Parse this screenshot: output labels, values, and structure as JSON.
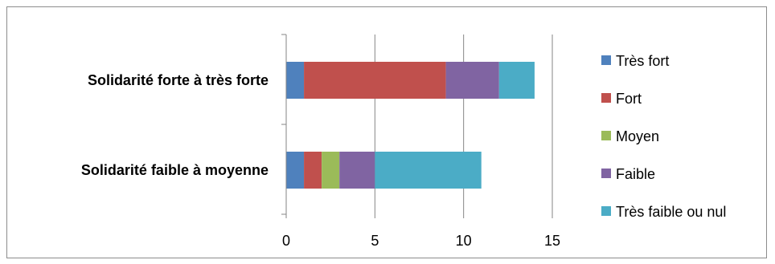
{
  "chart_data": {
    "type": "bar",
    "orientation": "horizontal",
    "stacked": true,
    "categories": [
      "Solidarité forte à très forte",
      "Solidarité faible à moyenne"
    ],
    "series": [
      {
        "name": "Très fort",
        "color": "#4f81bd",
        "values": [
          1,
          1
        ]
      },
      {
        "name": "Fort",
        "color": "#c0504d",
        "values": [
          8,
          1
        ]
      },
      {
        "name": "Moyen",
        "color": "#9bbb59",
        "values": [
          0,
          1
        ]
      },
      {
        "name": "Faible",
        "color": "#8064a2",
        "values": [
          3,
          2
        ]
      },
      {
        "name": "Très faible ou nul",
        "color": "#4bacc6",
        "values": [
          2,
          6
        ]
      }
    ],
    "xlim": [
      0,
      15
    ],
    "xticks": [
      0,
      5,
      10,
      15
    ],
    "grid": "vertical",
    "legend_position": "right"
  }
}
